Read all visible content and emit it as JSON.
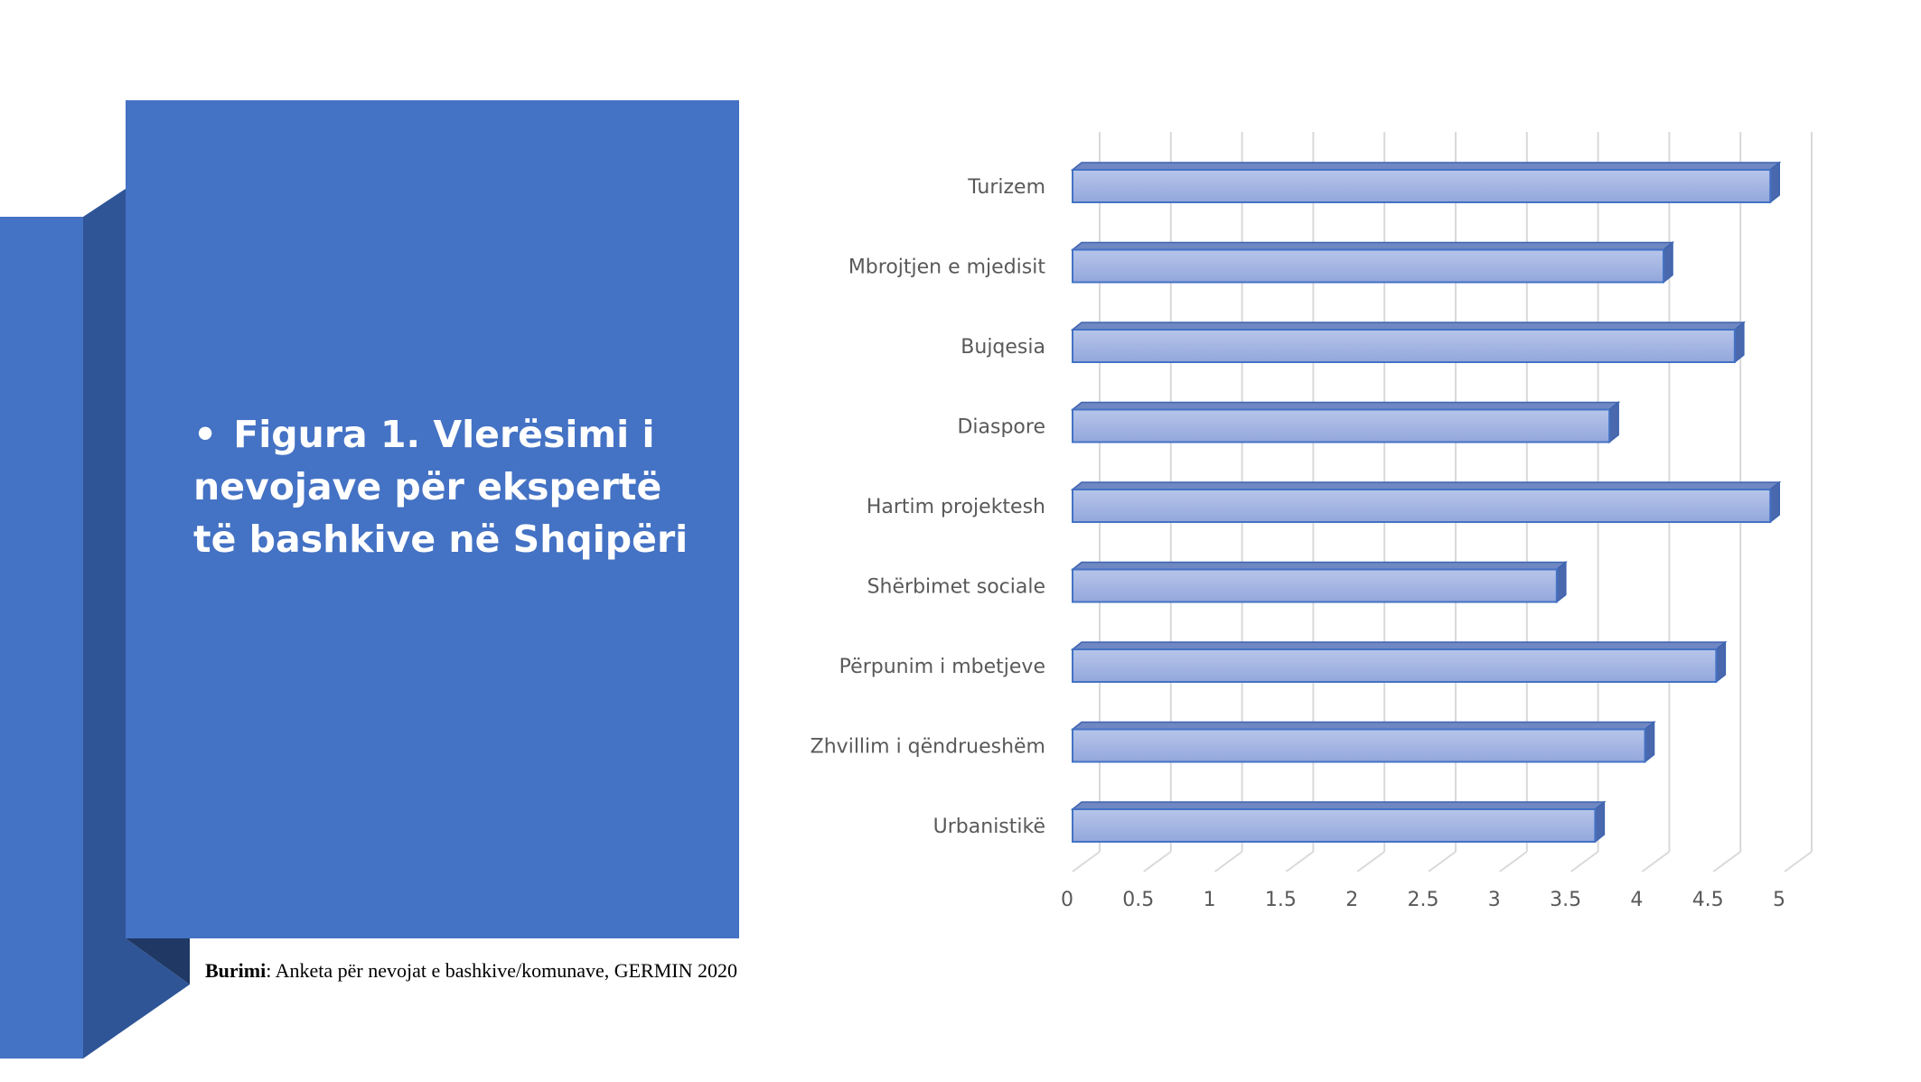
{
  "slide": {
    "bullet": "•",
    "headline": "Figura 1. Vlerësimi i nevojave për ekspertë të bashkive në Shqipëri",
    "source_bold": "Burimi",
    "source_rest": ": Anketa për nevojat e bashkive/komunave, GERMIN 2020",
    "accent_color": "#4472c4",
    "accent_dark": "#2f5597"
  },
  "chart_data": {
    "type": "bar",
    "orientation": "horizontal",
    "style": "3d",
    "categories": [
      "Turizem",
      "Mbrojtjen e mjedisit",
      "Bujqesia",
      "Diaspore",
      "Hartim projektesh",
      "Shërbimet sociale",
      "Përpunim i mbetjeve",
      "Zhvillim i qëndrueshëm",
      "Urbanistikë"
    ],
    "values": [
      4.9,
      4.15,
      4.65,
      3.77,
      4.9,
      3.4,
      4.52,
      4.02,
      3.67
    ],
    "xlim": [
      0,
      5
    ],
    "xticks": [
      "0",
      "0.5",
      "1",
      "1.5",
      "2",
      "2.5",
      "3",
      "3.5",
      "4",
      "4.5",
      "5"
    ],
    "grid": true,
    "bar_color": "#a4b5e0",
    "bar_edge": "#4472c4"
  }
}
